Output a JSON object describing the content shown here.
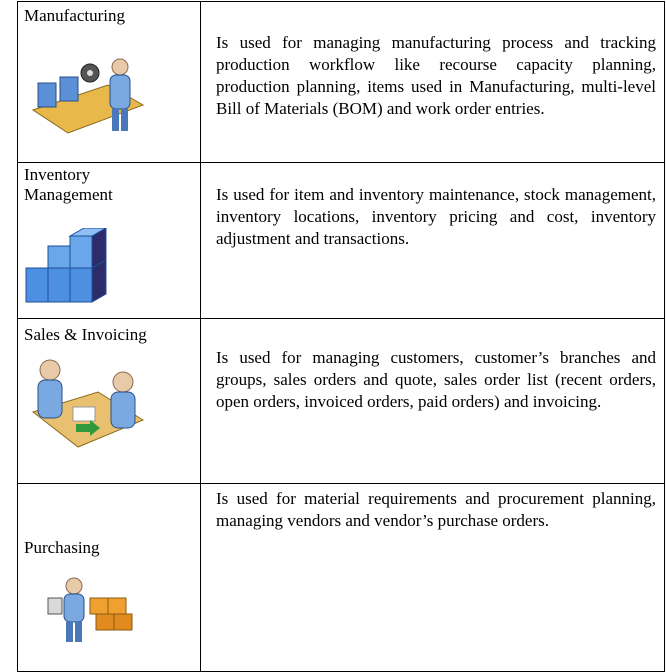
{
  "rows": [
    {
      "module": "Manufacturing",
      "description": "Is used for managing manufacturing process and tracking production workflow like recourse capacity planning, production planning, items used in Manufacturing, multi-level Bill of Materials (BOM) and work order entries."
    },
    {
      "module": "Inventory Management",
      "description": "Is used for item and inventory maintenance, stock management, inventory locations, inventory pricing and cost, inventory adjustment and transactions."
    },
    {
      "module": "Sales & Invoicing",
      "description": "Is used for managing customers, customer’s branches and groups, sales orders and quote, sales order list (recent orders, open orders, invoiced orders, paid orders) and invoicing."
    },
    {
      "module": "Purchasing",
      "description": "Is used for material requirements and procurement planning, managing vendors and vendor’s purchase orders."
    }
  ]
}
